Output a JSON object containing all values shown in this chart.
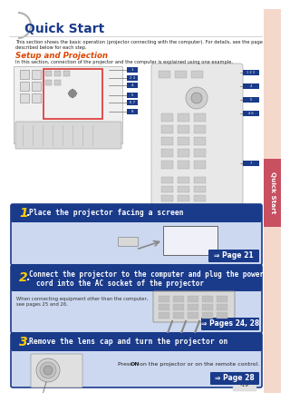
{
  "title": "Quick Start",
  "title_color": "#1a3a8a",
  "bg_color": "#ffffff",
  "sidebar_color": "#f5d8cc",
  "sidebar_tab_color": "#c85060",
  "sidebar_text": "Quick Start",
  "intro_text1": "This section shows the basic operation (projector connecting with the computer). For details, see the page",
  "intro_text2": "described below for each step.",
  "subtitle": "Setup and Projection",
  "subtitle_color": "#dd4400",
  "subtitle_body": "In this section, connection of the projector and the computer is explained using one example.",
  "step1_text": "Place the projector facing a screen",
  "step1_page": "⇒ Page 21",
  "step2_line1": "Connect the projector to the computer and plug the power",
  "step2_line2": "cord into the AC socket of the projector",
  "step2_note1": "When connecting equipment other than the computer,",
  "step2_note2": "see pages 25 and 26.",
  "step2_page": "⇒ Pages 24, 28",
  "step3_text": "Remove the lens cap and turn the projector on",
  "step3_body1": "Press ",
  "step3_body_bold": "ON",
  "step3_body2": " on the projector or on the remote control.",
  "step3_page": "⇒ Page 28",
  "step_header_color": "#1a3a8a",
  "step_body_color": "#ccd8f0",
  "step_border_color": "#1a3a8a",
  "page_ref_bg": "#1a3a8a",
  "step_num_color": "#ffcc00",
  "footer_text": "-19",
  "note_link_color": "#3366cc"
}
